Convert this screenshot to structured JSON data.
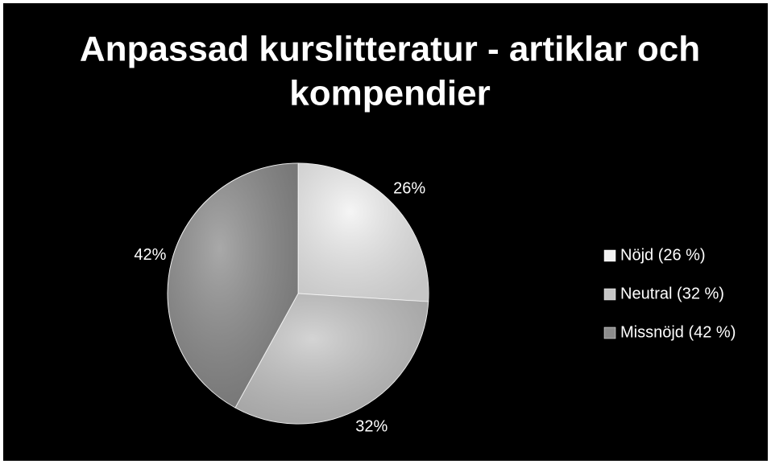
{
  "chart_data": {
    "type": "pie",
    "title": [
      "Anpassad kurslitteratur - artiklar och",
      "kompendier"
    ],
    "categories": [
      "Nöjd (26 %)",
      "Neutral (32 %)",
      "Missnöjd (42 %)"
    ],
    "values": [
      26,
      32,
      42
    ],
    "value_labels": [
      "26%",
      "32%",
      "42%"
    ],
    "colors": [
      "#f2f2f2",
      "#c6c6c6",
      "#8c8c8c"
    ],
    "legend": "right"
  }
}
